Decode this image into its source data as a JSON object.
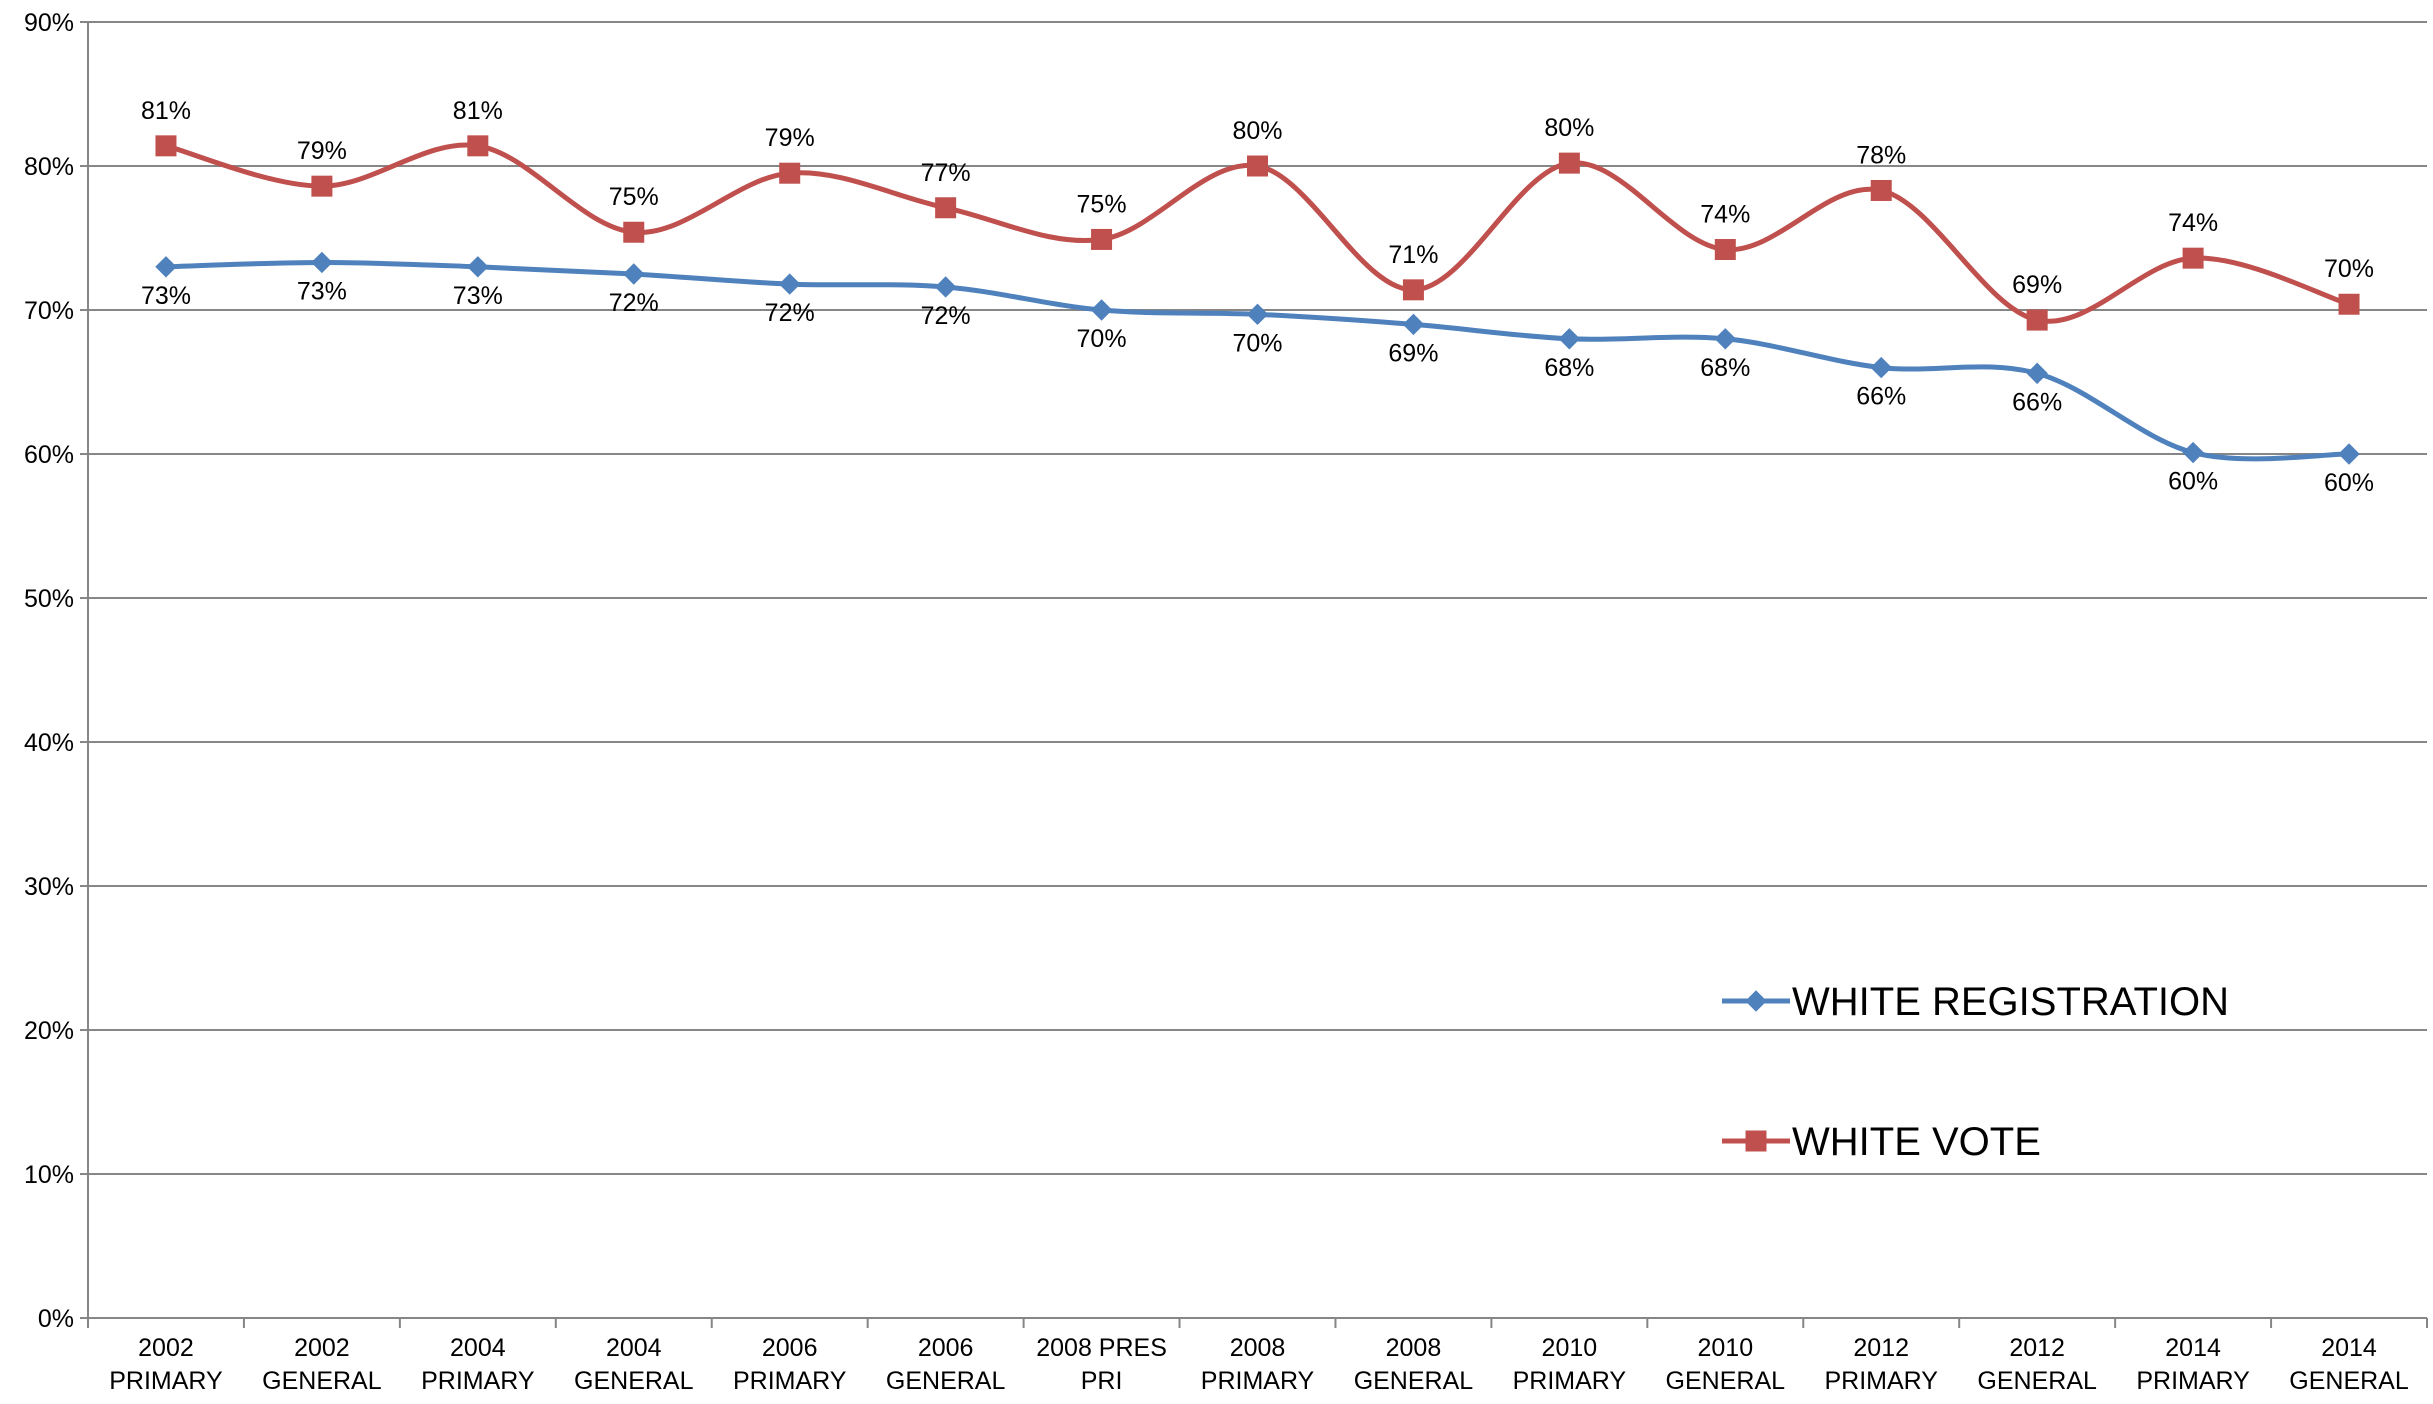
{
  "chart_data": {
    "type": "line",
    "title": "",
    "xlabel": "",
    "ylabel": "",
    "ylim": [
      0,
      90
    ],
    "y_ticks": [
      "0%",
      "10%",
      "20%",
      "30%",
      "40%",
      "50%",
      "60%",
      "70%",
      "80%",
      "90%"
    ],
    "grid": true,
    "legend_position": "right",
    "categories": [
      [
        "2002",
        "PRIMARY"
      ],
      [
        "2002",
        "GENERAL"
      ],
      [
        "2004",
        "PRIMARY"
      ],
      [
        "2004",
        "GENERAL"
      ],
      [
        "2006",
        "PRIMARY"
      ],
      [
        "2006",
        "GENERAL"
      ],
      [
        "2008 PRES",
        "PRI"
      ],
      [
        "2008",
        "PRIMARY"
      ],
      [
        "2008",
        "GENERAL"
      ],
      [
        "2010",
        "PRIMARY"
      ],
      [
        "2010",
        "GENERAL"
      ],
      [
        "2012",
        "PRIMARY"
      ],
      [
        "2012",
        "GENERAL"
      ],
      [
        "2014",
        "PRIMARY"
      ],
      [
        "2014",
        "GENERAL"
      ]
    ],
    "series": [
      {
        "name": "WHITE REGISTRATION",
        "color": "#4F81BD",
        "marker": "diamond",
        "label_position": "below",
        "values": [
          73.0,
          73.3,
          73.0,
          72.5,
          71.8,
          71.6,
          70.0,
          69.7,
          69.0,
          68.0,
          68.0,
          66.0,
          65.6,
          60.1,
          60.0
        ],
        "labels": [
          "73%",
          "73%",
          "73%",
          "72%",
          "72%",
          "72%",
          "70%",
          "70%",
          "69%",
          "68%",
          "68%",
          "66%",
          "66%",
          "60%",
          "60%"
        ]
      },
      {
        "name": "WHITE VOTE",
        "color": "#C0504D",
        "marker": "square",
        "label_position": "above",
        "values": [
          81.4,
          78.6,
          81.4,
          75.4,
          79.5,
          77.1,
          74.9,
          80.0,
          71.4,
          80.2,
          74.2,
          78.3,
          69.3,
          73.6,
          70.4
        ],
        "labels": [
          "81%",
          "79%",
          "81%",
          "75%",
          "79%",
          "77%",
          "75%",
          "80%",
          "71%",
          "80%",
          "74%",
          "78%",
          "69%",
          "74%",
          "70%"
        ]
      }
    ]
  }
}
